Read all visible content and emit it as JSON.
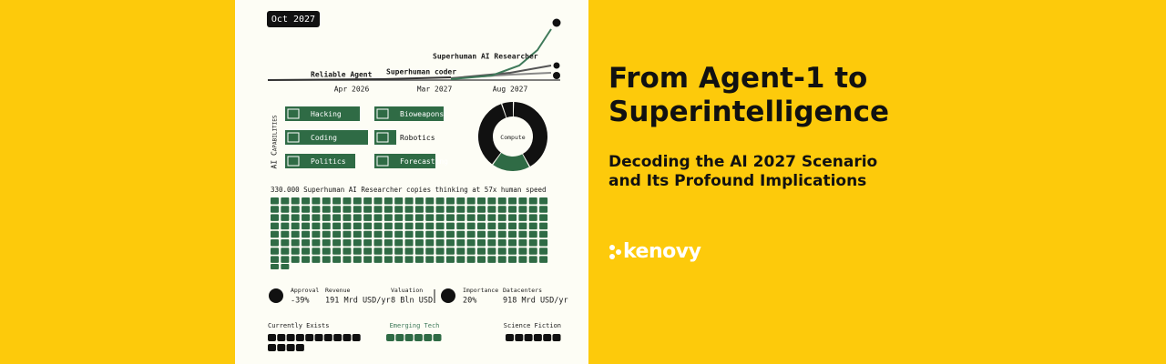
{
  "panel": {
    "date": "Oct 2027",
    "timeline": {
      "labels": [
        "Reliable Agent",
        "Superhuman coder",
        "Superhuman AI Researcher"
      ],
      "axis": [
        "Apr 2026",
        "Mar 2027",
        "Aug 2027"
      ]
    },
    "capabilities": {
      "title": "AI Capabilities",
      "items": [
        "Hacking",
        "Coding",
        "Politics",
        "Bioweapons",
        "Robotics",
        "Forecasting"
      ]
    },
    "compute": "Compute",
    "copies_caption": "330.000 Superhuman AI Researcher copies thinking at 57x human speed",
    "stats": [
      {
        "label": "Approval",
        "value": "-39%"
      },
      {
        "label": "Revenue",
        "value": "191 Mrd USD/yr"
      },
      {
        "label": "Valuation",
        "value": "8 Bln USD"
      },
      {
        "label": "Importance",
        "value": "20%"
      },
      {
        "label": "Datacenters",
        "value": "918 Mrd USD/yr"
      }
    ],
    "legend": [
      "Currently Exists",
      "Emerging Tech",
      "Science Fiction"
    ]
  },
  "header": {
    "title": "From Agent-1 to Superintelligence",
    "subtitle": "Decoding the AI 2027 Scenario and Its Profound Implications",
    "logo": "kenovy"
  }
}
